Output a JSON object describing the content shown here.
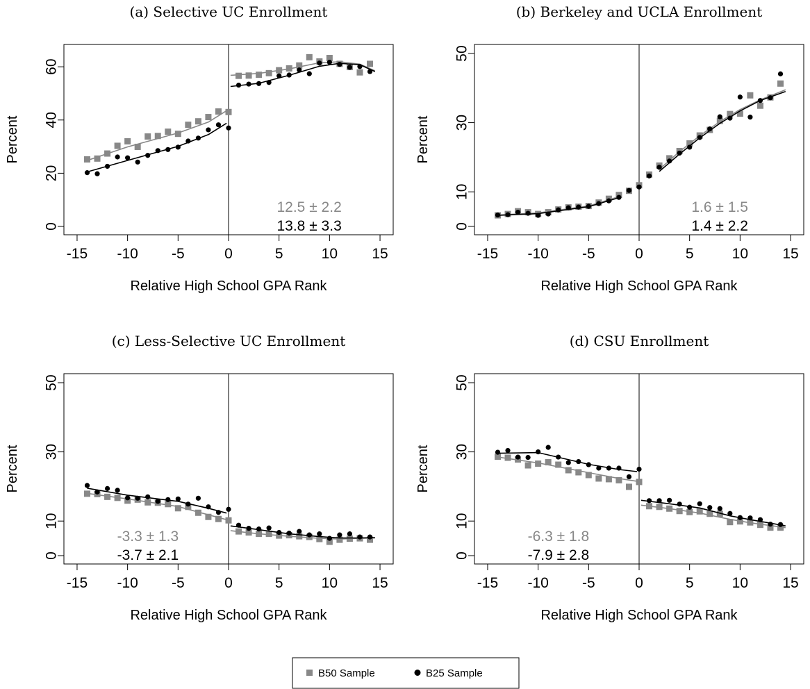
{
  "legend": {
    "placement": "bottom-center",
    "entries": [
      {
        "label": "B50 Sample",
        "color": "#888888",
        "marker": "square"
      },
      {
        "label": "B25 Sample",
        "color": "#000000",
        "marker": "circle"
      }
    ]
  },
  "chart_data": [
    {
      "type": "scatter",
      "title": "(a) Selective UC Enrollment",
      "xlabel": "Relative High School GPA Rank",
      "ylabel": "Percent",
      "xlim": [
        -15,
        15
      ],
      "ylim": [
        0,
        65
      ],
      "xticks": [
        -15,
        -10,
        -5,
        0,
        5,
        10,
        15
      ],
      "yticks": [
        0,
        20,
        40,
        60
      ],
      "cutoff": 0,
      "grid": false,
      "estimates": [
        {
          "text": "12.5 ± 2.2",
          "series": "B50 Sample"
        },
        {
          "text": "13.8 ± 3.3",
          "series": "B25 Sample"
        }
      ],
      "series": [
        {
          "name": "B50 Sample",
          "color": "#888888",
          "marker": "square",
          "x": [
            -14,
            -13,
            -12,
            -11,
            -10,
            -9,
            -8,
            -7,
            -6,
            -5,
            -4,
            -3,
            -2,
            -1,
            0,
            1,
            2,
            3,
            4,
            5,
            6,
            7,
            8,
            9,
            10,
            11,
            12,
            13,
            14
          ],
          "y": [
            25.2,
            25.5,
            27.4,
            30.3,
            32,
            29.9,
            33.8,
            34,
            35.6,
            34.8,
            38.2,
            39.5,
            41.1,
            43.2,
            43,
            56.6,
            56.7,
            57,
            57.6,
            58.7,
            59.4,
            60.5,
            63.6,
            62,
            63.3,
            61.1,
            59.9,
            57.9,
            61.1
          ],
          "fit": [
            [
              -14,
              24.8
            ],
            [
              -10,
              29.9
            ],
            [
              -5,
              35.1
            ],
            [
              -2,
              39.2
            ],
            [
              -0.2,
              43.5
            ],
            [
              0.2,
              56.8
            ],
            [
              3,
              57.5
            ],
            [
              6,
              59.2
            ],
            [
              9,
              61.5
            ],
            [
              11,
              61.9
            ],
            [
              13,
              61
            ],
            [
              14.5,
              58.5
            ]
          ]
        },
        {
          "name": "B25 Sample",
          "color": "#000000",
          "marker": "circle",
          "x": [
            -14,
            -13,
            -12,
            -11,
            -10,
            -9,
            -8,
            -7,
            -6,
            -5,
            -4,
            -3,
            -2,
            -1,
            0,
            1,
            2,
            3,
            4,
            5,
            6,
            7,
            8,
            9,
            10,
            11,
            12,
            13,
            14
          ],
          "y": [
            20.2,
            19.8,
            22.6,
            26.1,
            25.8,
            24.2,
            26.7,
            28.5,
            28.9,
            29.8,
            32.1,
            33.2,
            36.3,
            38.2,
            37,
            53.1,
            53.5,
            53.7,
            54.1,
            56.6,
            56.9,
            58.8,
            57.4,
            61.4,
            61.7,
            60.9,
            59.8,
            60.1,
            58.2
          ],
          "fit": [
            [
              -14,
              20.5
            ],
            [
              -10,
              24.8
            ],
            [
              -5,
              30.1
            ],
            [
              -2,
              34.5
            ],
            [
              -0.2,
              38.8
            ],
            [
              0.2,
              52.6
            ],
            [
              3,
              53.8
            ],
            [
              6,
              56.8
            ],
            [
              9,
              60.2
            ],
            [
              11,
              61.3
            ],
            [
              13,
              60.8
            ],
            [
              14.5,
              58.2
            ]
          ]
        }
      ]
    },
    {
      "type": "scatter",
      "title": "(b) Berkeley and UCLA Enrollment",
      "xlabel": "Relative High School GPA Rank",
      "ylabel": "Percent",
      "xlim": [
        -15,
        15
      ],
      "ylim": [
        0,
        50
      ],
      "xticks": [
        -15,
        -10,
        -5,
        0,
        5,
        10,
        15
      ],
      "yticks": [
        0,
        10,
        30,
        50
      ],
      "cutoff": 0,
      "grid": false,
      "estimates": [
        {
          "text": "1.6 ± 1.5",
          "series": "B50 Sample"
        },
        {
          "text": "1.4 ± 2.2",
          "series": "B25 Sample"
        }
      ],
      "series": [
        {
          "name": "B50 Sample",
          "color": "#888888",
          "marker": "square",
          "x": [
            -14,
            -13,
            -12,
            -11,
            -10,
            -9,
            -8,
            -7,
            -6,
            -5,
            -4,
            -3,
            -2,
            -1,
            0,
            1,
            2,
            3,
            4,
            5,
            6,
            7,
            8,
            9,
            10,
            11,
            12,
            13,
            14
          ],
          "y": [
            3.2,
            3.6,
            4.4,
            4.1,
            3.6,
            4.1,
            4.9,
            5.5,
            5.7,
            5.9,
            6.9,
            8,
            9.1,
            10.3,
            11.9,
            15,
            17.6,
            19.7,
            21.8,
            24,
            26.3,
            27.9,
            30.5,
            32.5,
            32.6,
            37.9,
            34.9,
            37.3,
            41.3
          ],
          "fit": [
            [
              -14,
              3.3
            ],
            [
              -10,
              3.9
            ],
            [
              -5,
              5.9
            ],
            [
              -2,
              8.6
            ],
            [
              0,
              11.6
            ],
            [
              2,
              16.5
            ],
            [
              4,
              21.6
            ],
            [
              6,
              26.2
            ],
            [
              8,
              30.3
            ],
            [
              10,
              33.8
            ],
            [
              12,
              36.6
            ],
            [
              14.5,
              39.5
            ]
          ]
        },
        {
          "name": "B25 Sample",
          "color": "#000000",
          "marker": "circle",
          "x": [
            -14,
            -13,
            -12,
            -11,
            -10,
            -9,
            -8,
            -7,
            -6,
            -5,
            -4,
            -3,
            -2,
            -1,
            0,
            1,
            2,
            3,
            4,
            5,
            6,
            7,
            8,
            9,
            10,
            11,
            12,
            13,
            14
          ],
          "y": [
            3.3,
            3.4,
            4.1,
            3.8,
            3.2,
            3.6,
            4.8,
            5.4,
            5.6,
            5.8,
            6.6,
            7.4,
            8.4,
            10.4,
            11.4,
            14.6,
            17.1,
            18.9,
            21.2,
            22.9,
            25.7,
            28.2,
            31.7,
            31.3,
            37.4,
            31.6,
            36.4,
            37.2,
            44.1
          ],
          "fit": [
            [
              -14,
              3.2
            ],
            [
              -10,
              3.7
            ],
            [
              -5,
              5.7
            ],
            [
              -2,
              8.3
            ],
            [
              0,
              11.1
            ],
            [
              2,
              15.9
            ],
            [
              4,
              20.9
            ],
            [
              6,
              25.6
            ],
            [
              8,
              29.8
            ],
            [
              10,
              33.4
            ],
            [
              12,
              36.4
            ],
            [
              14.5,
              39
            ]
          ]
        }
      ]
    },
    {
      "type": "scatter",
      "title": "(c) Less-Selective UC Enrollment",
      "xlabel": "Relative High School GPA Rank",
      "ylabel": "Percent",
      "xlim": [
        -15,
        15
      ],
      "ylim": [
        0,
        50
      ],
      "xticks": [
        -15,
        -10,
        -5,
        0,
        5,
        10,
        15
      ],
      "yticks": [
        0,
        10,
        30,
        50
      ],
      "cutoff": 0,
      "grid": false,
      "estimates": [
        {
          "text": "-3.3 ± 1.3",
          "series": "B50 Sample"
        },
        {
          "text": "-3.7 ± 2.1",
          "series": "B25 Sample"
        }
      ],
      "series": [
        {
          "name": "B50 Sample",
          "color": "#888888",
          "marker": "square",
          "x": [
            -14,
            -13,
            -12,
            -11,
            -10,
            -9,
            -8,
            -7,
            -6,
            -5,
            -4,
            -3,
            -2,
            -1,
            0,
            1,
            2,
            3,
            4,
            5,
            6,
            7,
            8,
            9,
            10,
            11,
            12,
            13,
            14
          ],
          "y": [
            17.9,
            17.8,
            17,
            16.7,
            15.9,
            16.2,
            15.4,
            15.3,
            14.9,
            13.7,
            14.1,
            12.4,
            11.2,
            10.6,
            10.2,
            7,
            6.7,
            6.3,
            6.3,
            5.8,
            5.9,
            5.6,
            5.4,
            4.8,
            4,
            4.6,
            4.9,
            5,
            4.6
          ],
          "fit": [
            [
              -14,
              18
            ],
            [
              -10,
              16.4
            ],
            [
              -5,
              14.2
            ],
            [
              -2,
              11.8
            ],
            [
              -0.2,
              10.4
            ],
            [
              0.2,
              7.2
            ],
            [
              3,
              6.3
            ],
            [
              6,
              5.6
            ],
            [
              9,
              5
            ],
            [
              11,
              4.8
            ],
            [
              13,
              5
            ],
            [
              14.5,
              5.1
            ]
          ]
        },
        {
          "name": "B25 Sample",
          "color": "#000000",
          "marker": "circle",
          "x": [
            -14,
            -13,
            -12,
            -11,
            -10,
            -9,
            -8,
            -7,
            -6,
            -5,
            -4,
            -3,
            -2,
            -1,
            0,
            1,
            2,
            3,
            4,
            5,
            6,
            7,
            8,
            9,
            10,
            11,
            12,
            13,
            14
          ],
          "y": [
            20.3,
            18.4,
            19.4,
            18.9,
            16.7,
            16.6,
            17,
            15.7,
            16.2,
            16.4,
            14.9,
            16.6,
            14.1,
            12.5,
            13.4,
            8.8,
            7.9,
            7.7,
            8,
            6.7,
            6.5,
            7,
            6,
            6.3,
            5,
            6,
            6.3,
            5.4,
            5.4
          ],
          "fit": [
            [
              -14,
              19.5
            ],
            [
              -10,
              17.5
            ],
            [
              -5,
              15.7
            ],
            [
              -2,
              13.7
            ],
            [
              -0.2,
              12.3
            ],
            [
              0.2,
              8.6
            ],
            [
              3,
              7.5
            ],
            [
              6,
              6.3
            ],
            [
              9,
              5.5
            ],
            [
              11,
              5.1
            ],
            [
              13,
              5.1
            ],
            [
              14.5,
              5.2
            ]
          ]
        }
      ]
    },
    {
      "type": "scatter",
      "title": "(d) CSU Enrollment",
      "xlabel": "Relative High School GPA Rank",
      "ylabel": "Percent",
      "xlim": [
        -15,
        15
      ],
      "ylim": [
        0,
        50
      ],
      "xticks": [
        -15,
        -10,
        -5,
        0,
        5,
        10,
        15
      ],
      "yticks": [
        0,
        10,
        30,
        50
      ],
      "cutoff": 0,
      "grid": false,
      "estimates": [
        {
          "text": "-6.3 ± 1.8",
          "series": "B50 Sample"
        },
        {
          "text": "-7.9 ± 2.8",
          "series": "B25 Sample"
        }
      ],
      "series": [
        {
          "name": "B50 Sample",
          "color": "#888888",
          "marker": "square",
          "x": [
            -14,
            -13,
            -12,
            -11,
            -10,
            -9,
            -8,
            -7,
            -6,
            -5,
            -4,
            -3,
            -2,
            -1,
            0,
            1,
            2,
            3,
            4,
            5,
            6,
            7,
            8,
            9,
            10,
            11,
            12,
            13,
            14
          ],
          "y": [
            28.6,
            28.3,
            27.8,
            26.1,
            26.6,
            27,
            26.3,
            24.7,
            24.1,
            23.3,
            22.3,
            22.1,
            21.8,
            19.9,
            21.3,
            14.3,
            14.1,
            13.6,
            12.9,
            12.6,
            12.8,
            12.1,
            12.1,
            9.7,
            9.9,
            9.6,
            8.9,
            8.1,
            8.1
          ],
          "fit": [
            [
              -14,
              28.5
            ],
            [
              -10,
              26.8
            ],
            [
              -5,
              24
            ],
            [
              -2,
              22.3
            ],
            [
              -0.2,
              21.5
            ],
            [
              0.2,
              14.6
            ],
            [
              3,
              13.6
            ],
            [
              6,
              12.3
            ],
            [
              9,
              10.5
            ],
            [
              11,
              9.5
            ],
            [
              13,
              8.7
            ],
            [
              14.5,
              8.1
            ]
          ]
        },
        {
          "name": "B25 Sample",
          "color": "#000000",
          "marker": "circle",
          "x": [
            -14,
            -13,
            -12,
            -11,
            -10,
            -9,
            -8,
            -7,
            -6,
            -5,
            -4,
            -3,
            -2,
            -1,
            0,
            1,
            2,
            3,
            4,
            5,
            6,
            7,
            8,
            9,
            10,
            11,
            12,
            13,
            14
          ],
          "y": [
            29.9,
            30.4,
            28.5,
            28.4,
            30,
            31.3,
            28.5,
            26.9,
            27.2,
            26.3,
            25.3,
            25.3,
            25.3,
            22.8,
            25,
            15.9,
            15.9,
            16,
            14.9,
            14,
            15,
            13.9,
            13.6,
            12.2,
            11,
            10.9,
            10.4,
            9.1,
            9
          ],
          "fit": [
            [
              -14,
              29.6
            ],
            [
              -10,
              29.8
            ],
            [
              -5,
              26.4
            ],
            [
              -2,
              24.9
            ],
            [
              -0.2,
              24.3
            ],
            [
              0.2,
              16
            ],
            [
              3,
              15
            ],
            [
              6,
              13.8
            ],
            [
              9,
              11.5
            ],
            [
              11,
              10.4
            ],
            [
              13,
              9.4
            ],
            [
              14.5,
              8.6
            ]
          ]
        }
      ]
    }
  ]
}
